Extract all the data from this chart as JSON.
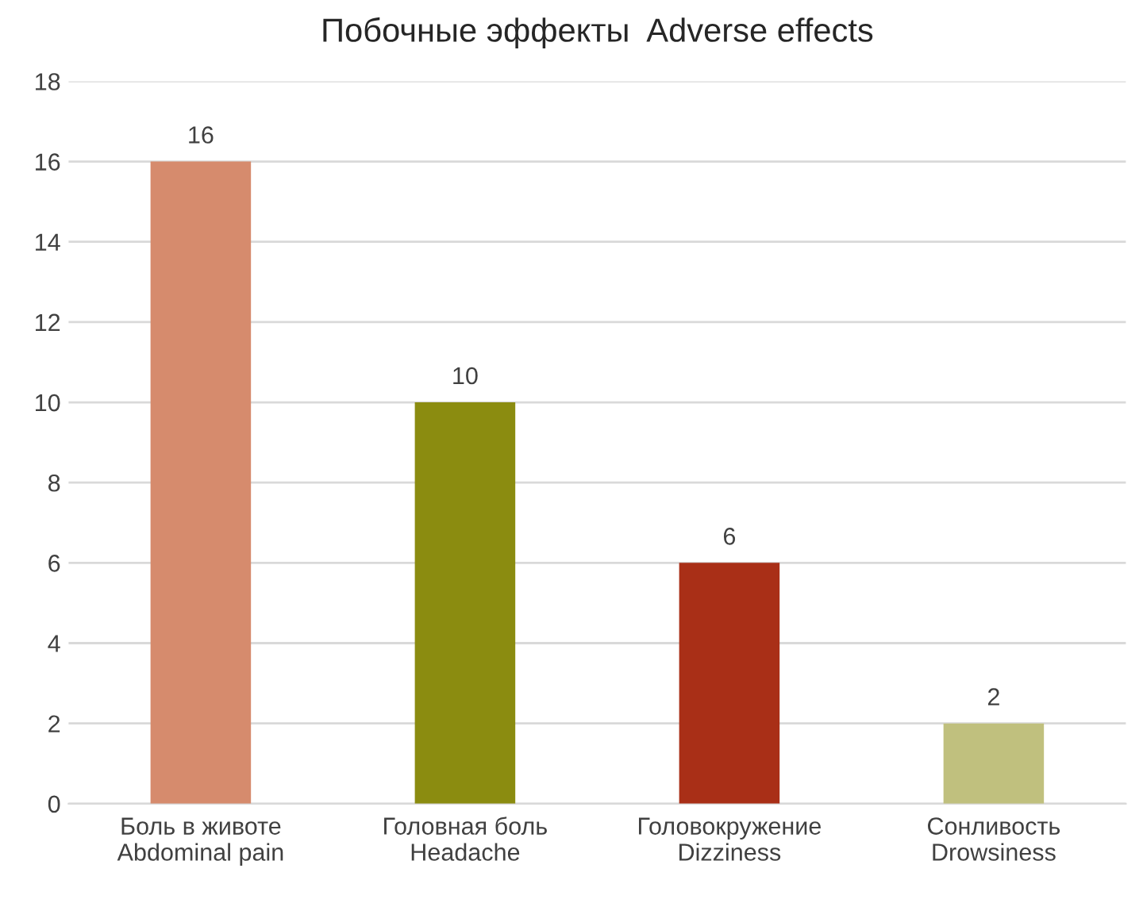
{
  "chart_data": {
    "type": "bar",
    "title": "Побочные эффекты  Adverse effects",
    "categories": [
      "Боль в животе\nAbdominal pain",
      "Головная боль\nHeadache",
      "Головокружение\nDizziness",
      "Сонливость\nDrowsiness"
    ],
    "values": [
      16,
      10,
      6,
      2
    ],
    "colors": [
      "#d68b6d",
      "#8b8c10",
      "#a92f17",
      "#c0c07e"
    ],
    "ylim": [
      0,
      18
    ],
    "yticks": [
      0,
      2,
      4,
      6,
      8,
      10,
      12,
      14,
      16,
      18
    ],
    "grid": "y",
    "data_labels": true
  }
}
